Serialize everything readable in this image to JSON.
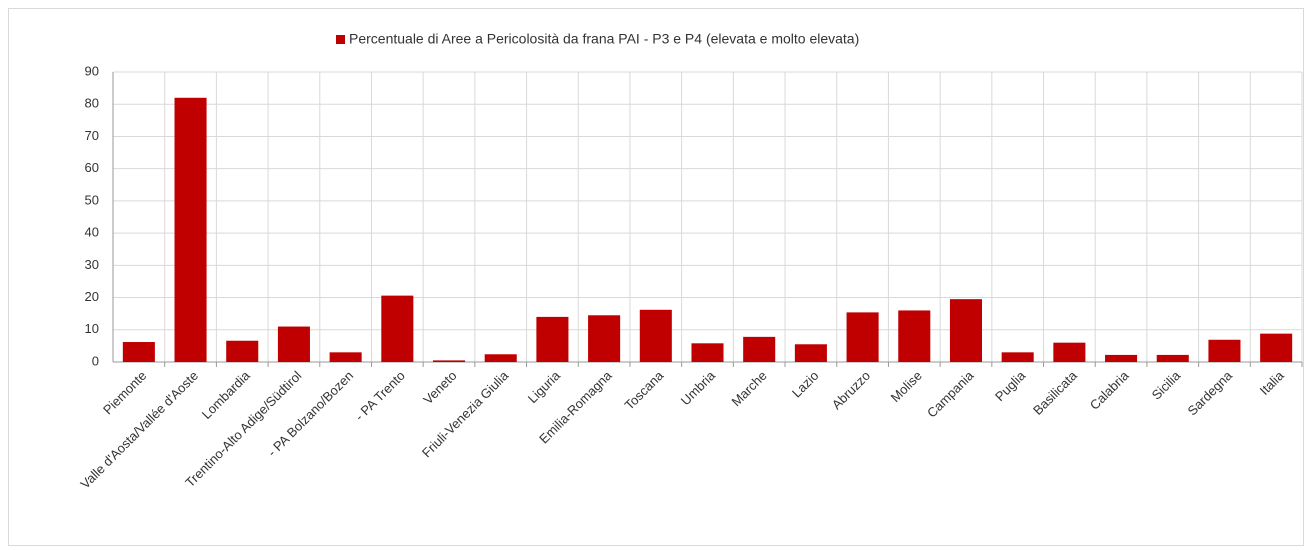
{
  "chart_data": {
    "type": "bar",
    "legend_label": "Percentuale di Aree a Pericolosità da frana PAI - P3 e P4  (elevata e molto elevata)",
    "categories": [
      "Piemonte",
      "Valle d'Aosta/Vallée d'Aoste",
      "Lombardia",
      "Trentino-Alto Adige/Südtirol",
      " - PA Bolzano/Bozen",
      " - PA Trento",
      "Veneto",
      "Friuli-Venezia Giulia",
      "Liguria",
      "Emilia-Romagna",
      "Toscana",
      "Umbria",
      "Marche",
      "Lazio",
      "Abruzzo",
      "Molise",
      "Campania",
      "Puglia",
      "Basilicata",
      "Calabria",
      "Sicilia",
      "Sardegna",
      "Italia"
    ],
    "values": [
      6.2,
      82,
      6.6,
      11,
      3,
      20.6,
      0.5,
      2.4,
      14,
      14.5,
      16.2,
      5.8,
      7.8,
      5.5,
      15.4,
      16,
      19.5,
      3,
      6,
      2.2,
      2.2,
      6.9,
      8.8
    ],
    "color": "#c00000",
    "ylim": [
      0,
      90
    ],
    "yticks": [
      0,
      10,
      20,
      30,
      40,
      50,
      60,
      70,
      80,
      90
    ],
    "grid": true
  }
}
